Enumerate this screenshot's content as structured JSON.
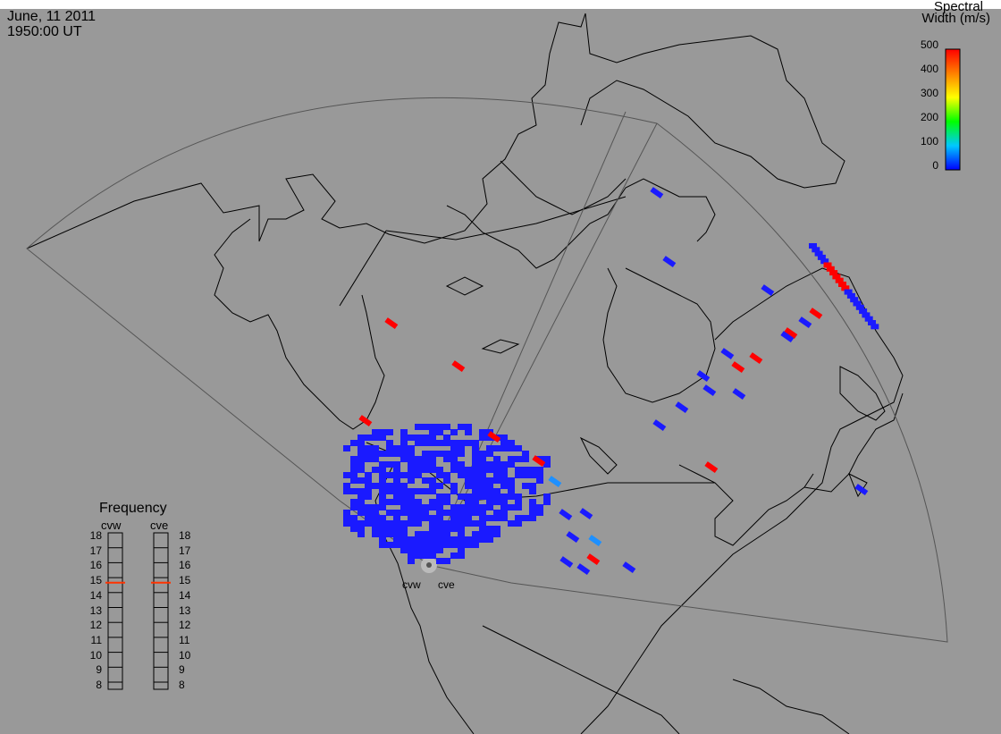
{
  "header": {
    "date": "June, 11 2011",
    "time": "1950:00 UT"
  },
  "colorbar": {
    "title_line1": "Spectral",
    "title_line2": "Width (m/s)",
    "ticks": [
      "500",
      "400",
      "300",
      "200",
      "100",
      "0"
    ],
    "range": [
      0,
      500
    ],
    "colors": [
      "#0000ff",
      "#00c8ff",
      "#00ff00",
      "#ffff00",
      "#ff8000",
      "#ff0000"
    ]
  },
  "frequency": {
    "title": "Frequency",
    "radars": [
      "cvw",
      "cve"
    ],
    "values_mhz": [
      14.9,
      14.9
    ],
    "scale": [
      "18",
      "17",
      "16",
      "15",
      "14",
      "13",
      "12",
      "11",
      "10",
      "9",
      "8"
    ]
  },
  "radar_labels": [
    "cvw",
    "cve"
  ]
}
